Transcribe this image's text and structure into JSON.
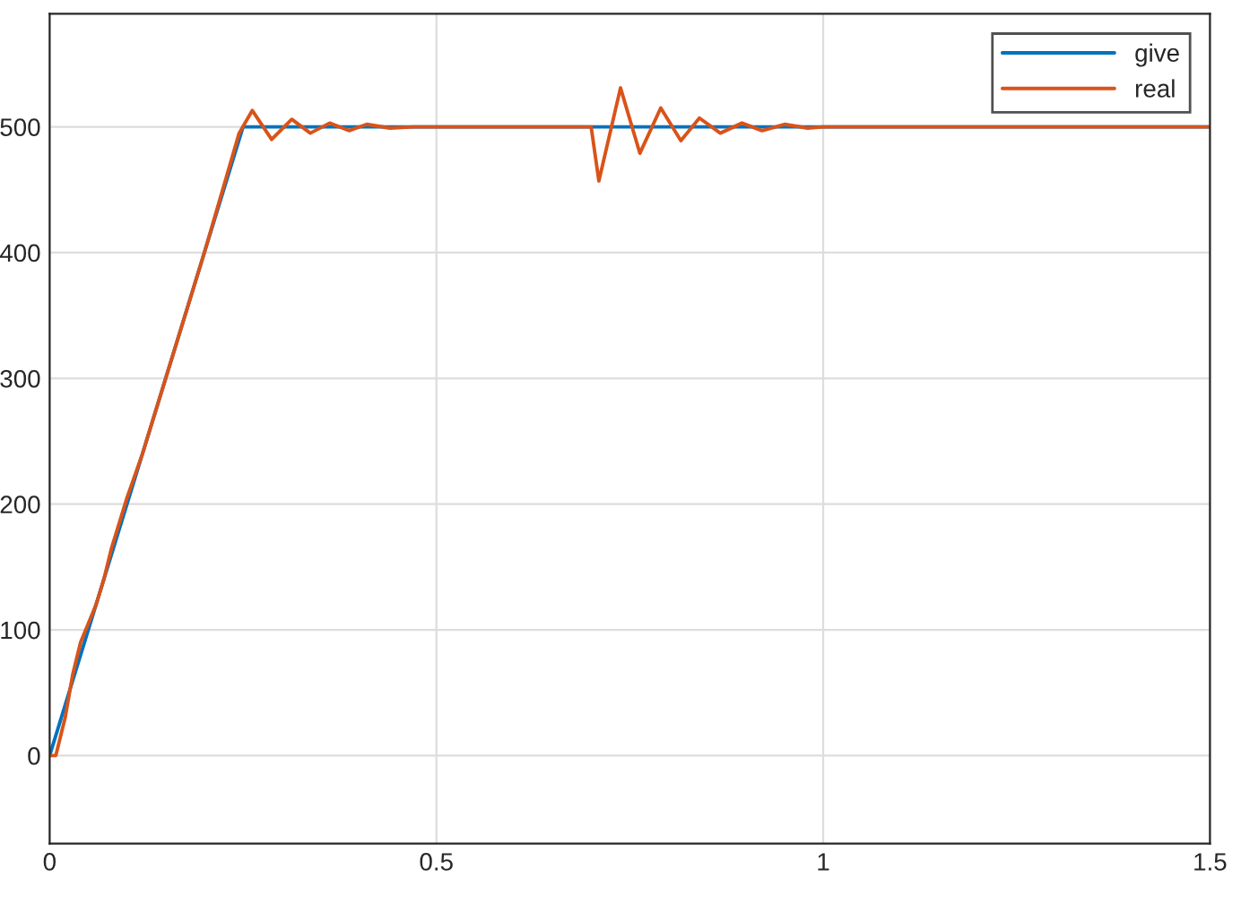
{
  "chart_data": {
    "type": "line",
    "xlim": [
      0,
      1.5
    ],
    "ylim": [
      -70,
      590
    ],
    "xticks": [
      0,
      0.5,
      1,
      1.5
    ],
    "yticks": [
      0,
      100,
      200,
      300,
      400,
      500
    ],
    "grid": true,
    "legend": "top right",
    "series": [
      {
        "name": "give",
        "color": "#0072bd",
        "x": [
          0,
          0.25,
          0.7,
          1.5
        ],
        "values": [
          0,
          500,
          500,
          500
        ]
      },
      {
        "name": "real",
        "color": "#d95319",
        "x": [
          0,
          0.008,
          0.02,
          0.03,
          0.04,
          0.05,
          0.06,
          0.07,
          0.08,
          0.09,
          0.1,
          0.12,
          0.15,
          0.2,
          0.245,
          0.262,
          0.287,
          0.313,
          0.337,
          0.362,
          0.387,
          0.41,
          0.44,
          0.47,
          0.7,
          0.71,
          0.738,
          0.763,
          0.79,
          0.816,
          0.84,
          0.867,
          0.895,
          0.921,
          0.95,
          0.98,
          1.0,
          1.5
        ],
        "values": [
          0,
          0,
          30,
          65,
          90,
          105,
          120,
          140,
          165,
          185,
          205,
          240,
          300,
          400,
          495,
          513,
          490,
          506,
          495,
          503,
          497,
          502,
          499,
          500,
          500,
          457,
          531,
          479,
          515,
          489,
          507,
          495,
          503,
          497,
          502,
          499,
          500,
          500
        ]
      }
    ]
  }
}
